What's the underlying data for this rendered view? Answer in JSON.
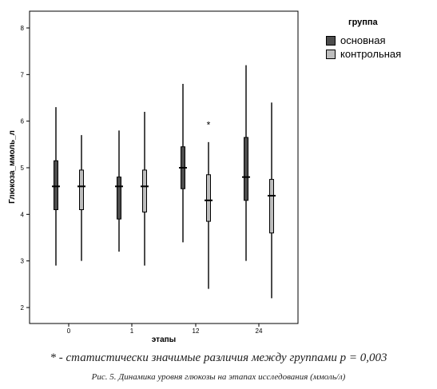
{
  "chart_data": {
    "type": "box",
    "ylabel": "Глюкоза_ммоль_л",
    "xlabel": "этапы",
    "categories": [
      "0",
      "1",
      "12",
      "24"
    ],
    "ylim": [
      1.8,
      8.4
    ],
    "yticks": [
      2,
      3,
      4,
      5,
      6,
      7,
      8
    ],
    "legend": {
      "title": "группа",
      "position": "right",
      "items": [
        {
          "name": "основная",
          "color": "#4d4d4d"
        },
        {
          "name": "контрольная",
          "color": "#bdbdbd"
        }
      ]
    },
    "series": [
      {
        "name": "основная",
        "color": "#4d4d4d",
        "boxes": [
          {
            "min": 2.9,
            "q1": 4.1,
            "median": 4.6,
            "q3": 5.15,
            "max": 6.3
          },
          {
            "min": 3.2,
            "q1": 3.9,
            "median": 4.6,
            "q3": 4.8,
            "max": 5.8
          },
          {
            "min": 3.4,
            "q1": 4.55,
            "median": 5.0,
            "q3": 5.45,
            "max": 6.8
          },
          {
            "min": 3.0,
            "q1": 4.3,
            "median": 4.8,
            "q3": 5.65,
            "max": 7.2
          }
        ]
      },
      {
        "name": "контрольная",
        "color": "#bdbdbd",
        "boxes": [
          {
            "min": 3.0,
            "q1": 4.1,
            "median": 4.6,
            "q3": 4.95,
            "max": 5.7
          },
          {
            "min": 2.9,
            "q1": 4.05,
            "median": 4.6,
            "q3": 4.95,
            "max": 6.2
          },
          {
            "min": 2.4,
            "q1": 3.85,
            "median": 4.3,
            "q3": 4.85,
            "max": 5.55
          },
          {
            "min": 2.2,
            "q1": 3.6,
            "median": 4.4,
            "q3": 4.75,
            "max": 6.4
          }
        ]
      }
    ],
    "annotations": [
      {
        "text": "*",
        "category": "12",
        "series": "контрольная",
        "y": 5.85
      }
    ],
    "grid": false
  },
  "note": "* - статистически значимые различия между группами p = 0,003",
  "caption": "Рис. 5. Динамика уровня глюкозы на этапах исследования (ммоль/л)"
}
